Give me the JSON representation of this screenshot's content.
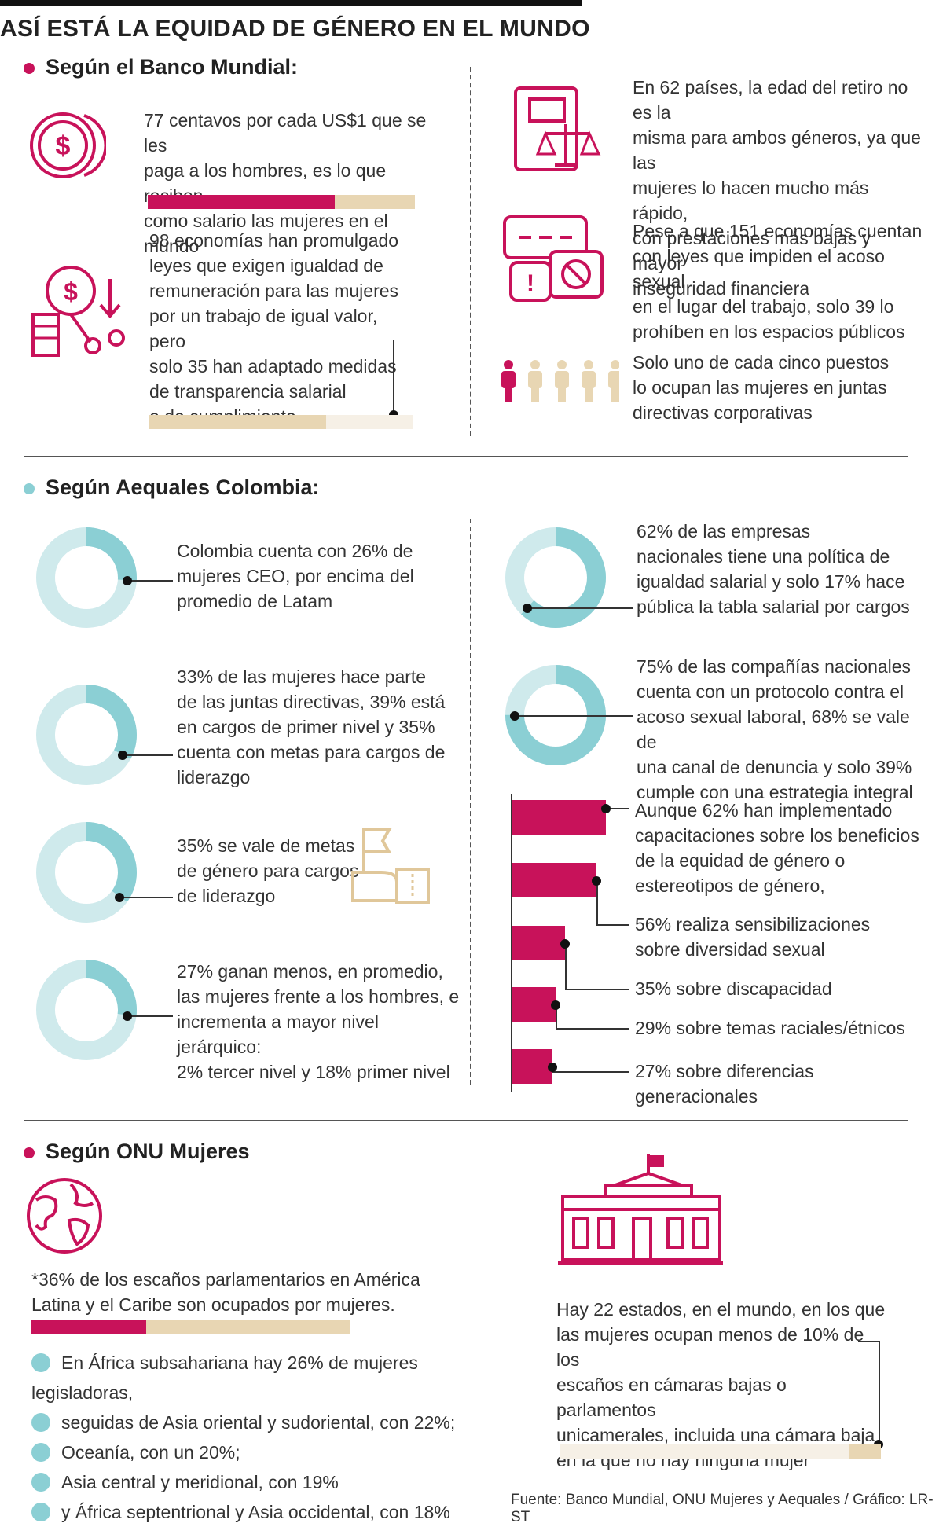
{
  "title": "ASÍ ESTÁ LA EQUIDAD DE GÉNERO EN EL MUNDO",
  "colors": {
    "magenta": "#c8125a",
    "beige": "#e8d6b3",
    "teal": "#8bcfd4",
    "teal_light": "#cfeaec"
  },
  "banco": {
    "heading": "Según el Banco Mundial:",
    "salary": {
      "lines": [
        "77 centavos por cada US$1 que se les",
        "paga a los hombres, es lo que reciben",
        "como salario las mujeres en el mundo"
      ],
      "fill": 0.7,
      "icon": "dollar-coin-icon"
    },
    "laws": {
      "lines": [
        "98 economías han promulgado",
        "leyes que exigen igualdad de",
        "remuneración para las mujeres",
        "por un trabajo de igual valor, pero",
        "solo 35 han adaptado medidas",
        "de transparencia salarial",
        "o de cumplimiento"
      ],
      "fill": 0.67,
      "icon": "salary-law-icon"
    },
    "retire": {
      "lines": [
        "En 62 países, la edad del retiro no es la",
        "misma para ambos géneros, ya que las",
        "mujeres lo hacen mucho más rápido,",
        "con prestaciones más bajas y mayor",
        "inseguridad financiera"
      ],
      "icon": "law-book-icon"
    },
    "harass": {
      "lines": [
        "Pese a que 151 economías cuentan",
        "con leyes que impiden el acoso sexual",
        "en el lugar del trabajo, solo 39 lo",
        "prohíben en los espacios públicos"
      ],
      "icon": "speech-prohibited-icon"
    },
    "boards": {
      "lines": [
        "Solo uno de cada cinco puestos",
        "lo ocupan las mujeres en juntas",
        "directivas corporativas"
      ],
      "icon": "people-icon",
      "ratio": "1 de 5"
    }
  },
  "aequales": {
    "heading": "Según Aequales Colombia:",
    "left": [
      {
        "pct": 26,
        "lines": [
          "Colombia cuenta con 26% de",
          "mujeres CEO, por encima del",
          "promedio de Latam"
        ]
      },
      {
        "pct": 33,
        "lines": [
          "33% de las mujeres hace parte",
          "de las juntas directivas, 39% está",
          "en cargos de primer nivel y 35%",
          "cuenta con metas para cargos de",
          "liderazgo"
        ]
      },
      {
        "pct": 35,
        "lines": [
          "35% se vale de metas",
          "de género para cargos",
          "de liderazgo"
        ]
      },
      {
        "pct": 27,
        "lines": [
          "27% ganan menos, en promedio,",
          "las mujeres frente a los hombres, e",
          "incrementa a mayor nivel jerárquico:",
          "2% tercer nivel y 18% primer nivel"
        ]
      }
    ],
    "right": [
      {
        "pct": 62,
        "lines": [
          "62% de las empresas",
          "nacionales tiene una política de",
          "igualdad salarial y solo 17% hace",
          "pública la tabla salarial por cargos"
        ]
      },
      {
        "pct": 75,
        "lines": [
          "75% de las compañías nacionales",
          "cuenta con un protocolo contra el",
          "acoso sexual laboral, 68% se vale de",
          "una canal de denuncia y solo 39%",
          "cumple con una estrategia integral"
        ]
      }
    ],
    "bars": [
      {
        "value": 62,
        "lines": [
          "Aunque 62% han implementado",
          "capacitaciones sobre los beneficios",
          "de la equidad de género o",
          "estereotipos de género,"
        ]
      },
      {
        "value": 56,
        "lines": [
          "56% realiza sensibilizaciones",
          "sobre diversidad sexual"
        ]
      },
      {
        "value": 35,
        "lines": [
          "35% sobre discapacidad"
        ]
      },
      {
        "value": 29,
        "lines": [
          "29% sobre temas raciales/étnicos"
        ]
      },
      {
        "value": 27,
        "lines": [
          "27% sobre diferencias generacionales"
        ]
      }
    ]
  },
  "onu": {
    "heading": "Según ONU Mujeres",
    "parliament": {
      "lines": [
        "*36% de los escaños parlamentarios en América",
        "Latina y el Caribe son ocupados por mujeres."
      ],
      "fill": 0.36
    },
    "bullets": [
      "En África subsahariana hay 26% de mujeres legisladoras,",
      "seguidas de Asia oriental y sudoriental, con 22%;",
      "Oceanía, con un 20%;",
      "Asia central y meridional, con 19%",
      "y África septentrional y Asia occidental, con 18%"
    ],
    "states": {
      "lines": [
        "Hay 22 estados, en el mundo, en los que",
        "las mujeres ocupan menos de 10% de los",
        "escaños en cámaras bajas o parlamentos",
        "unicamerales, incluida una cámara baja",
        "en la que no hay ninguna mujer"
      ],
      "fill": 0.1
    }
  },
  "footer": "Fuente: Banco Mundial, ONU Mujeres y Aequales / Gráfico: LR-ST"
}
